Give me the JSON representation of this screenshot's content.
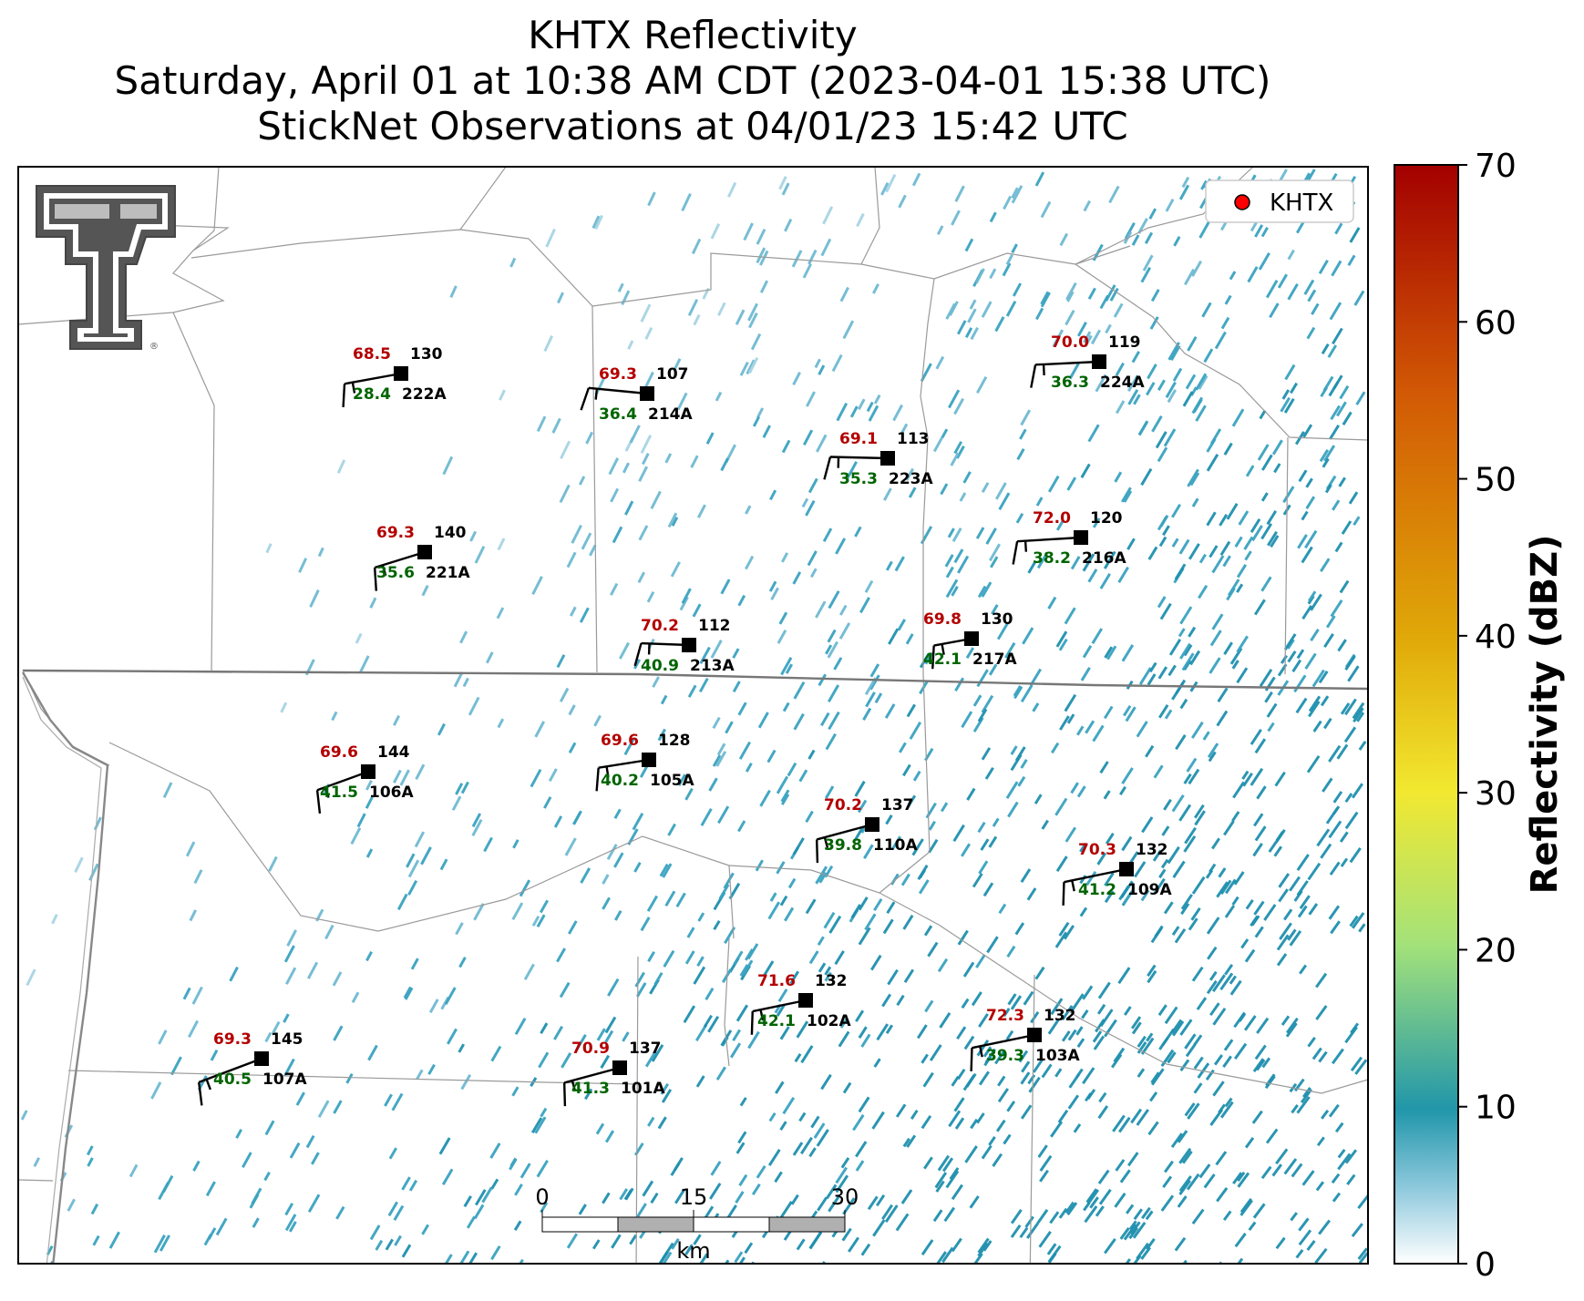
{
  "title": {
    "line1": "KHTX Reflectivity",
    "line2": "Saturday, April 01 at 10:38 AM CDT (2023-04-01 15:38 UTC)",
    "line3": "StickNet Observations at 04/01/23 15:42 UTC"
  },
  "legend": {
    "label": "KHTX",
    "marker_color": "#ff0000"
  },
  "colorbar": {
    "label": "Reflectivity (dBZ)",
    "ticks": [
      "0",
      "10",
      "20",
      "30",
      "40",
      "50",
      "60",
      "70"
    ],
    "range": [
      0,
      70
    ],
    "colors": [
      "#ffffff",
      "#2196aa",
      "#a3e27a",
      "#f2e830",
      "#e0a808",
      "#d25a05",
      "#a30000"
    ]
  },
  "scale_bar": {
    "ticks": [
      "0",
      "15",
      "30"
    ],
    "unit": "km"
  },
  "logo": {
    "name": "Texas Tech Double T",
    "mark": "®"
  },
  "stations": [
    {
      "id": "222A",
      "temp": "68.5",
      "dewpoint": "28.4",
      "wind_dir": "130"
    },
    {
      "id": "214A",
      "temp": "69.3",
      "dewpoint": "36.4",
      "wind_dir": "107"
    },
    {
      "id": "224A",
      "temp": "70.0",
      "dewpoint": "36.3",
      "wind_dir": "119"
    },
    {
      "id": "223A",
      "temp": "69.1",
      "dewpoint": "35.3",
      "wind_dir": "113"
    },
    {
      "id": "221A",
      "temp": "69.3",
      "dewpoint": "35.6",
      "wind_dir": "140"
    },
    {
      "id": "216A",
      "temp": "72.0",
      "dewpoint": "38.2",
      "wind_dir": "120"
    },
    {
      "id": "213A",
      "temp": "70.2",
      "dewpoint": "40.9",
      "wind_dir": "112"
    },
    {
      "id": "217A",
      "temp": "69.8",
      "dewpoint": "42.1",
      "wind_dir": "130"
    },
    {
      "id": "106A",
      "temp": "69.6",
      "dewpoint": "41.5",
      "wind_dir": "144"
    },
    {
      "id": "105A",
      "temp": "69.6",
      "dewpoint": "40.2",
      "wind_dir": "128"
    },
    {
      "id": "110A",
      "temp": "70.2",
      "dewpoint": "39.8",
      "wind_dir": "137"
    },
    {
      "id": "109A",
      "temp": "70.3",
      "dewpoint": "41.2",
      "wind_dir": "132"
    },
    {
      "id": "102A",
      "temp": "71.6",
      "dewpoint": "42.1",
      "wind_dir": "132"
    },
    {
      "id": "103A",
      "temp": "72.3",
      "dewpoint": "39.3",
      "wind_dir": "132"
    },
    {
      "id": "107A",
      "temp": "69.3",
      "dewpoint": "40.5",
      "wind_dir": "145"
    },
    {
      "id": "101A",
      "temp": "70.9",
      "dewpoint": "41.3",
      "wind_dir": "137"
    }
  ]
}
